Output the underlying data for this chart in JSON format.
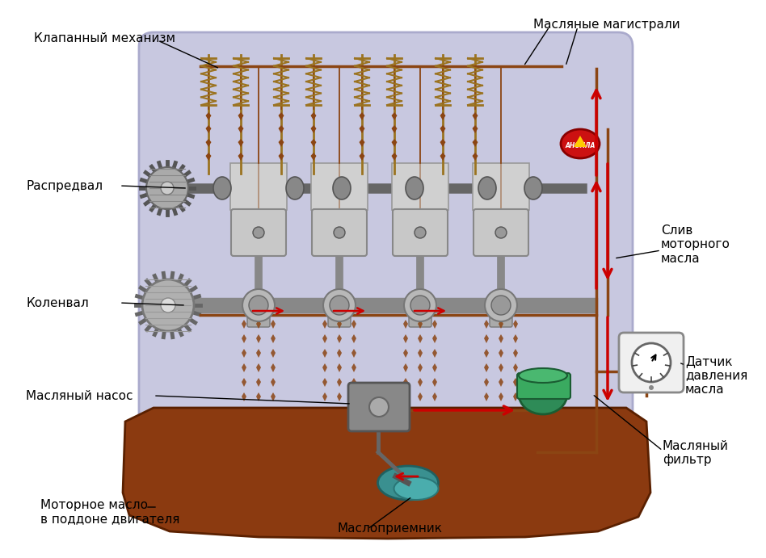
{
  "title": "",
  "bg_color": "#ffffff",
  "engine_bg": "#c8c8e0",
  "engine_border": "#aaaacc",
  "oil_pan_color": "#8B3A10",
  "oil_line_color": "#8B4513",
  "oil_drop_color": "#8B4513",
  "arrow_color": "#cc0000",
  "filter_color": "#2e8b57",
  "spring_color": "#9B7320",
  "valve_color": "#9B7320",
  "labels": {
    "valve_mech": "Клапанный механизм",
    "camshaft": "Распредвал",
    "crankshaft": "Коленвал",
    "oil_pump": "Масляный насос",
    "oil_pan": "Моторное масло\nв поддоне двигателя",
    "oil_strainer": "Маслоприемник",
    "oil_mains": "Масляные магистрали",
    "oil_drain": "Слив\nмоторного\nмасла",
    "oil_pressure": "Датчик\nдавления\nмасла",
    "oil_filter": "Масляный\nфильтр"
  },
  "figsize": [
    9.48,
    6.91
  ],
  "dpi": 100
}
